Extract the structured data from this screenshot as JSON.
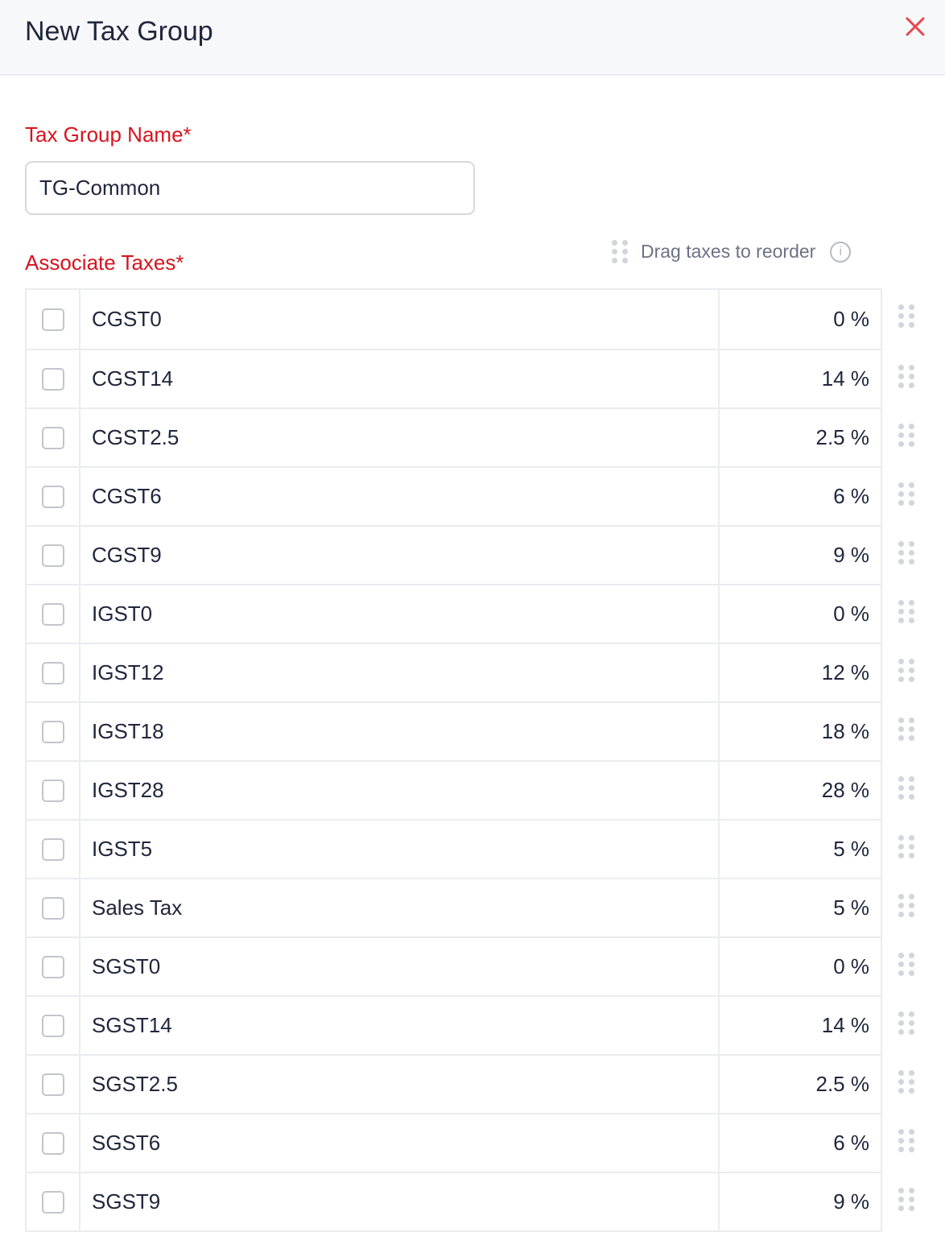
{
  "header": {
    "title": "New Tax Group"
  },
  "form": {
    "name_label": "Tax Group Name*",
    "name_value": "TG-Common",
    "taxes_label": "Associate Taxes*",
    "drag_hint": "Drag taxes to reorder"
  },
  "colors": {
    "accent": "#d6141e",
    "close": "#e5484d"
  },
  "taxes": [
    {
      "name": "CGST0",
      "rate": "0 %"
    },
    {
      "name": "CGST14",
      "rate": "14 %"
    },
    {
      "name": "CGST2.5",
      "rate": "2.5 %"
    },
    {
      "name": "CGST6",
      "rate": "6 %"
    },
    {
      "name": "CGST9",
      "rate": "9 %"
    },
    {
      "name": "IGST0",
      "rate": "0 %"
    },
    {
      "name": "IGST12",
      "rate": "12 %"
    },
    {
      "name": "IGST18",
      "rate": "18 %"
    },
    {
      "name": "IGST28",
      "rate": "28 %"
    },
    {
      "name": "IGST5",
      "rate": "5 %"
    },
    {
      "name": "Sales Tax",
      "rate": "5 %"
    },
    {
      "name": "SGST0",
      "rate": "0 %"
    },
    {
      "name": "SGST14",
      "rate": "14 %"
    },
    {
      "name": "SGST2.5",
      "rate": "2.5 %"
    },
    {
      "name": "SGST6",
      "rate": "6 %"
    },
    {
      "name": "SGST9",
      "rate": "9 %"
    }
  ]
}
